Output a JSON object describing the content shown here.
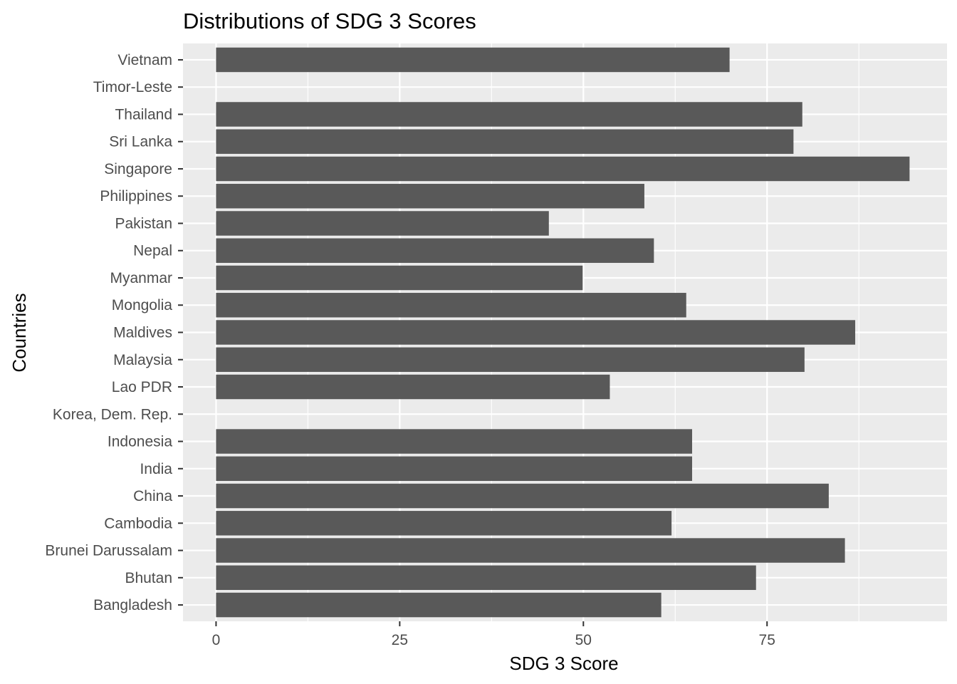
{
  "chart_data": {
    "type": "bar",
    "orientation": "horizontal",
    "title": "Distributions of SDG 3 Scores",
    "xlabel": "SDG 3 Score",
    "ylabel": "Countries",
    "xlim": [
      -4.5,
      99.5
    ],
    "xticks": [
      0,
      25,
      50,
      75
    ],
    "xtick_labels": [
      "0",
      "25",
      "50",
      "75"
    ],
    "grid": true,
    "legend": "none",
    "colors": {
      "bar": "#595959",
      "panel": "#ebebeb",
      "grid_major": "#ffffff",
      "tick_label": "#4d4d4d"
    },
    "categories": [
      "Bangladesh",
      "Bhutan",
      "Brunei Darussalam",
      "Cambodia",
      "China",
      "India",
      "Indonesia",
      "Korea, Dem. Rep.",
      "Lao PDR",
      "Malaysia",
      "Maldives",
      "Mongolia",
      "Myanmar",
      "Nepal",
      "Pakistan",
      "Philippines",
      "Singapore",
      "Sri Lanka",
      "Thailand",
      "Timor-Leste",
      "Vietnam"
    ],
    "values": [
      60.6,
      73.5,
      85.6,
      62.0,
      83.4,
      64.8,
      64.8,
      null,
      53.6,
      80.1,
      87.0,
      64.0,
      49.9,
      59.6,
      45.3,
      58.3,
      94.4,
      78.6,
      79.8,
      null,
      69.9
    ]
  }
}
